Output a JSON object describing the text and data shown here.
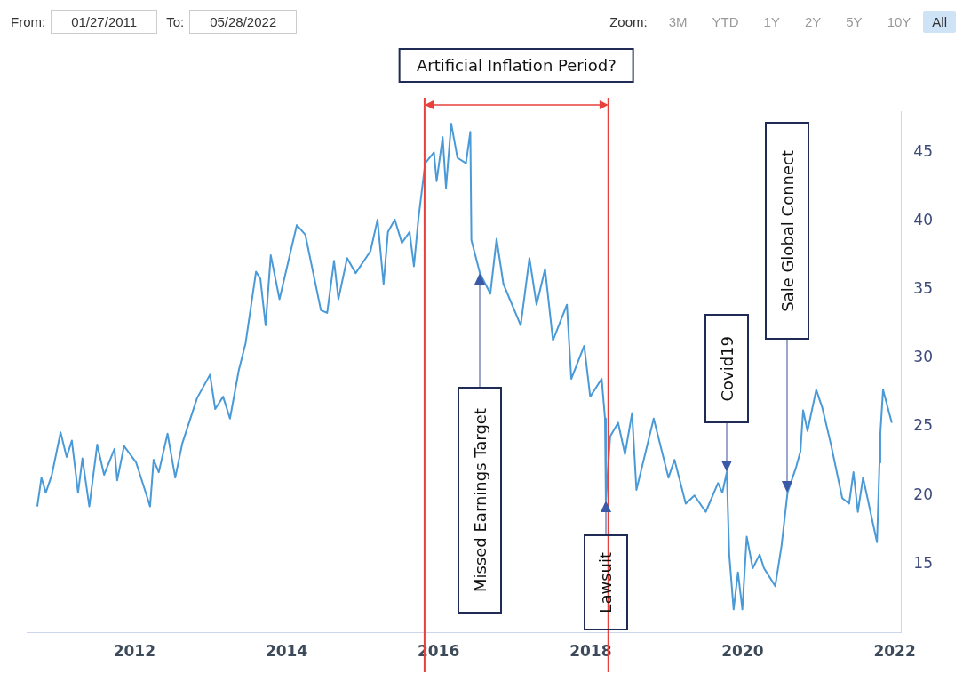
{
  "chart_data": {
    "type": "line",
    "x": [
      "2010-09-21",
      "2010-10-11",
      "2010-11-01",
      "2010-11-30",
      "2011-01-11",
      "2011-02-09",
      "2011-03-06",
      "2011-04-05",
      "2011-04-26",
      "2011-05-29",
      "2011-07-06",
      "2011-08-08",
      "2011-09-27",
      "2011-10-10",
      "2011-11-12",
      "2012-01-09",
      "2012-02-20",
      "2012-03-16",
      "2012-04-02",
      "2012-04-27",
      "2012-06-08",
      "2012-07-15",
      "2012-08-18",
      "2012-10-28",
      "2012-12-29",
      "2013-01-23",
      "2013-03-02",
      "2013-04-04",
      "2013-05-16",
      "2013-06-18",
      "2013-08-07",
      "2013-08-28",
      "2013-09-22",
      "2013-10-17",
      "2013-11-28",
      "2014-02-19",
      "2014-04-01",
      "2014-06-15",
      "2014-07-15",
      "2014-08-17",
      "2014-09-07",
      "2014-10-19",
      "2014-11-29",
      "2015-02-08",
      "2015-03-14",
      "2015-04-12",
      "2015-05-03",
      "2015-06-05",
      "2015-07-09",
      "2015-08-15",
      "2015-09-05",
      "2015-09-26",
      "2015-10-29",
      "2015-12-10",
      "2015-12-23",
      "2016-01-21",
      "2016-02-06",
      "2016-03-02",
      "2016-04-01",
      "2016-05-12",
      "2016-06-02",
      "2016-06-07",
      "2016-07-18",
      "2016-09-06",
      "2016-10-06",
      "2016-11-08",
      "2017-01-30",
      "2017-03-13",
      "2017-04-16",
      "2017-05-27",
      "2017-07-04",
      "2017-09-09",
      "2017-09-30",
      "2017-12-01",
      "2017-12-30",
      "2018-02-23",
      "2018-03-11",
      "2018-03-15",
      "2018-04-05",
      "2018-05-13",
      "2018-06-15",
      "2018-07-19",
      "2018-08-09",
      "2018-10-31",
      "2019-01-10",
      "2019-02-08",
      "2019-04-03",
      "2019-05-15",
      "2019-07-08",
      "2019-09-05",
      "2019-09-26",
      "2019-10-17",
      "2019-10-29",
      "2019-11-19",
      "2019-12-10",
      "2019-12-31",
      "2020-01-21",
      "2020-02-19",
      "2020-03-23",
      "2020-04-13",
      "2020-06-06",
      "2020-07-06",
      "2020-08-04",
      "2020-09-15",
      "2020-10-05",
      "2020-10-18",
      "2020-11-08",
      "2020-12-20",
      "2021-01-18",
      "2021-03-01",
      "2021-04-24",
      "2021-05-27",
      "2021-06-17",
      "2021-07-08",
      "2021-08-02",
      "2021-10-08",
      "2021-10-20",
      "2021-10-24",
      "2021-11-06",
      "2021-12-18"
    ],
    "series": [
      {
        "color": "#4a9ad8",
        "values": [
          19.2,
          21.3,
          20.2,
          21.5,
          24.6,
          22.8,
          24.0,
          20.2,
          22.7,
          19.2,
          23.7,
          21.5,
          23.4,
          21.1,
          23.6,
          22.4,
          20.4,
          19.2,
          22.6,
          21.7,
          24.5,
          21.3,
          23.8,
          27.1,
          28.8,
          26.3,
          27.2,
          25.6,
          29.1,
          31.1,
          36.3,
          35.8,
          32.4,
          37.5,
          34.3,
          39.7,
          39.0,
          33.5,
          33.3,
          37.1,
          34.3,
          37.3,
          36.2,
          37.8,
          40.1,
          35.4,
          39.2,
          40.1,
          38.4,
          39.2,
          36.7,
          40.1,
          44.2,
          45.0,
          42.9,
          46.1,
          42.4,
          47.1,
          44.6,
          44.2,
          46.5,
          38.6,
          36.2,
          34.7,
          38.7,
          35.4,
          32.4,
          37.3,
          33.9,
          36.5,
          31.3,
          33.9,
          28.5,
          30.9,
          27.2,
          28.5,
          25.6,
          19.6,
          24.3,
          25.3,
          23.0,
          26.0,
          20.4,
          25.6,
          21.3,
          22.6,
          19.4,
          20.0,
          18.8,
          20.9,
          20.2,
          21.7,
          15.7,
          11.7,
          14.4,
          11.7,
          17.0,
          14.7,
          15.7,
          14.7,
          13.4,
          16.3,
          20.2,
          22.1,
          23.2,
          26.2,
          24.7,
          27.7,
          26.4,
          23.7,
          19.8,
          19.4,
          21.7,
          18.8,
          21.3,
          16.6,
          22.4,
          24.5,
          27.7,
          25.3
        ]
      }
    ],
    "xlim": [
      "2010-08",
      "2022-02"
    ],
    "xticks": [
      "2012",
      "2014",
      "2016",
      "2018",
      "2020",
      "2022"
    ],
    "ylim": [
      10,
      48
    ],
    "yticks": [
      15,
      20,
      25,
      30,
      35,
      40,
      45
    ],
    "grid": false,
    "legend": false,
    "marker": "none",
    "line_style": "solid",
    "ref_lines": [
      {
        "axis": "x",
        "value": "2015-10-26",
        "color": "#e8413c"
      },
      {
        "axis": "x",
        "value": "2018-03-27",
        "color": "#e8413c"
      }
    ],
    "annotations": [
      "From:",
      "01/27/2011",
      "To:",
      "05/28/2022",
      "Zoom:",
      "3M",
      "YTD",
      "1Y",
      "2Y",
      "5Y",
      "10Y",
      "All",
      "Artificial Inflation Period?",
      "Missed Earnings Target",
      "Lawsuit",
      "Covid19",
      "Sale Global Connect"
    ]
  }
}
